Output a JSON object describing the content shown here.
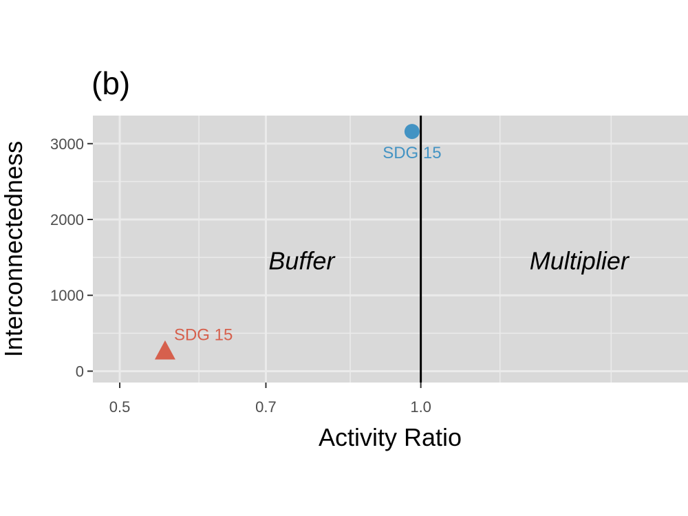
{
  "chart_data": {
    "type": "scatter",
    "tag": "(b)",
    "xlabel": "Activity Ratio",
    "ylabel": "Interconnectedness",
    "xscale": "log",
    "xlim": [
      0.47,
      1.85
    ],
    "ylim": [
      -150,
      3370
    ],
    "xticks": [
      0.5,
      0.7,
      1.0
    ],
    "xtick_labels": [
      "0.5",
      "0.7",
      "1.0"
    ],
    "xgrid_minor": [
      0.6,
      0.85,
      1.2,
      1.55
    ],
    "yticks": [
      0,
      1000,
      2000,
      3000
    ],
    "ytick_labels": [
      "0",
      "1000",
      "2000",
      "3000"
    ],
    "ygrid_minor": [
      500,
      1500,
      2500
    ],
    "reference_line_x": 1.0,
    "regions": [
      {
        "label": "Buffer",
        "x": 0.76,
        "y": 1450
      },
      {
        "label": "Multiplier",
        "x": 1.44,
        "y": 1450
      }
    ],
    "points": [
      {
        "label": "SDG 15",
        "x": 0.98,
        "y": 3160,
        "shape": "circle",
        "color": "#4393c3"
      },
      {
        "label": "SDG 15",
        "x": 0.555,
        "y": 270,
        "shape": "triangle",
        "color": "#d6604d"
      }
    ],
    "panel_background": "#d9d9d9",
    "grid_color": "#ebebeb",
    "grid": true,
    "legend": "none"
  }
}
